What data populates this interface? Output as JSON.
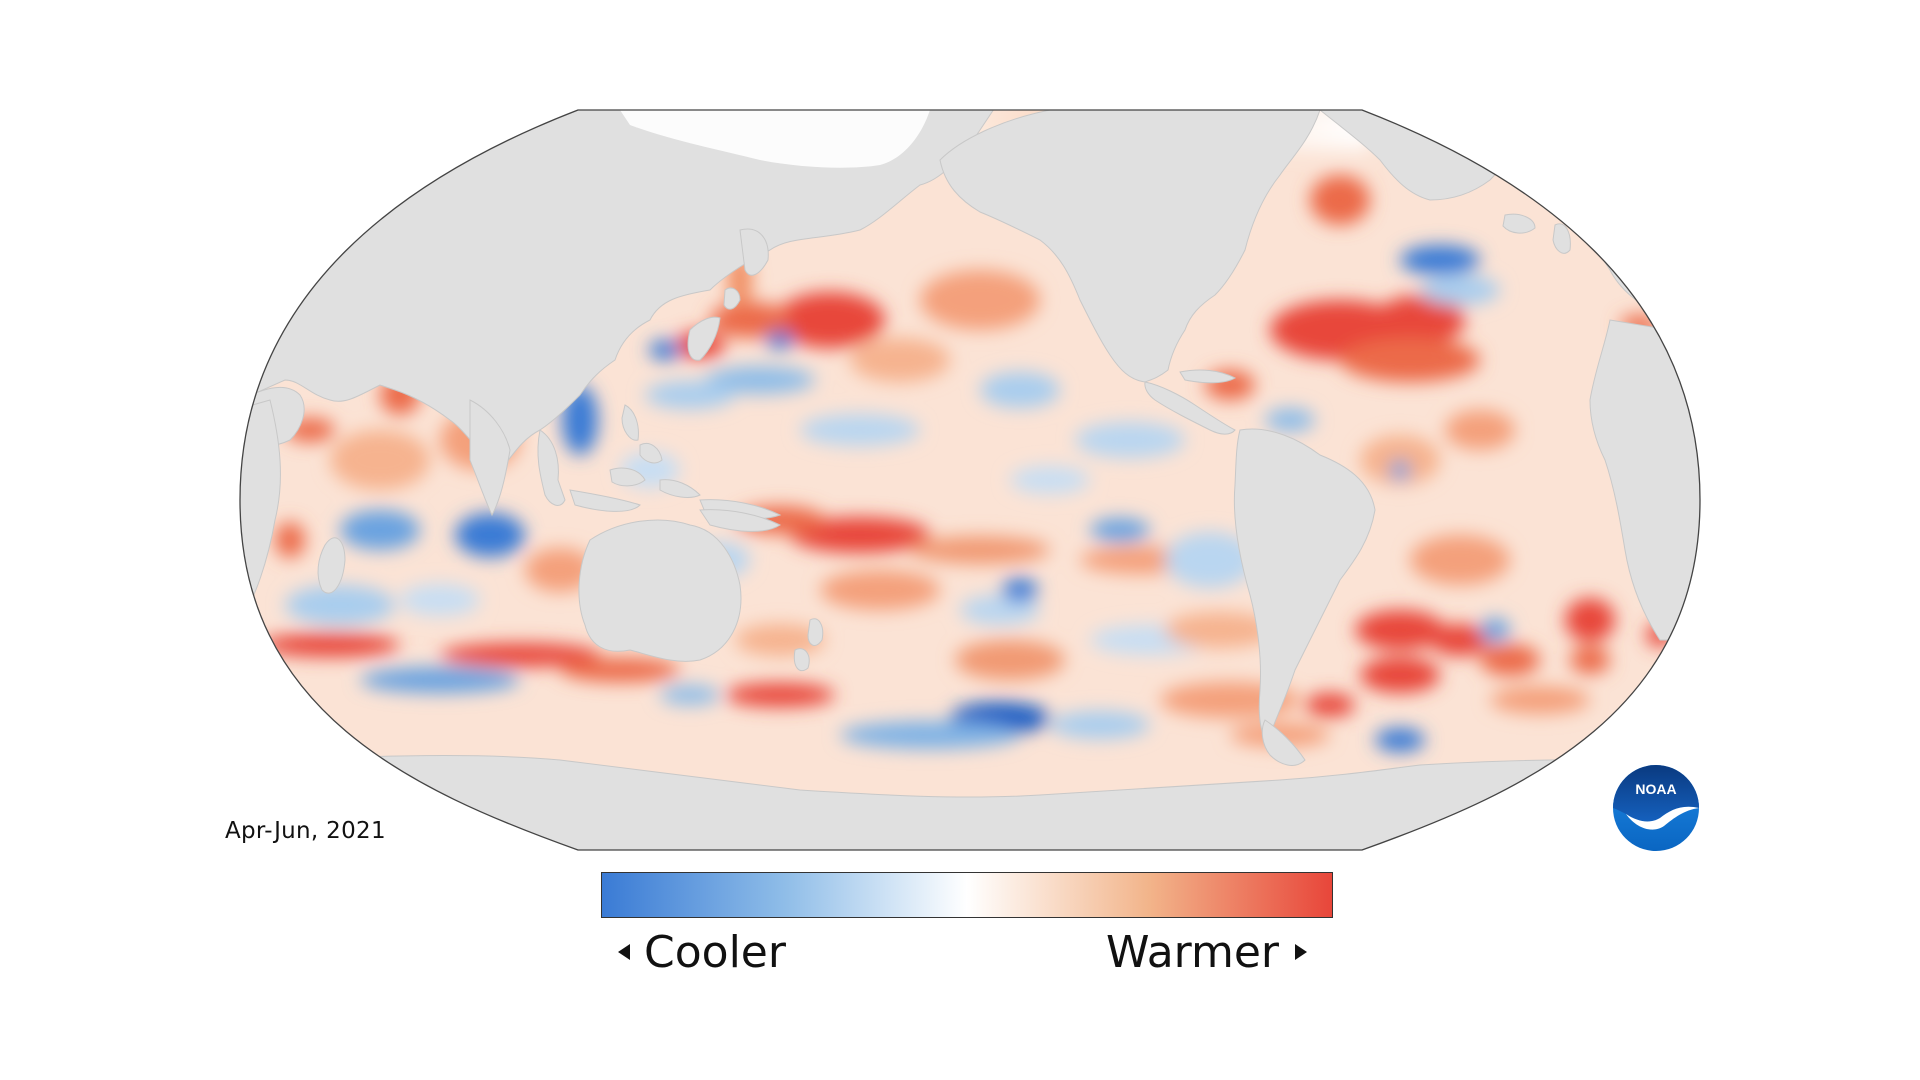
{
  "date_label": "Apr-Jun, 2021",
  "legend": {
    "cooler_label": "Cooler",
    "warmer_label": "Warmer",
    "cool_color": "#3a7bd5",
    "neutral_color": "#ffffff",
    "warm_color": "#e8463a",
    "gradient_stops": [
      "#3a7bd5",
      "#8fbde8",
      "#ffffff",
      "#f2b48a",
      "#e8463a"
    ]
  },
  "logo": {
    "text": "NOAA",
    "primary_color": "#1560bd",
    "secondary_color": "#0a3a80"
  },
  "colors": {
    "land": "#e0e0e0",
    "ocean_base": "#fbe3d5",
    "outline": "#444444"
  },
  "icons": [
    "arrow-left-icon",
    "arrow-right-icon",
    "noaa-logo"
  ]
}
